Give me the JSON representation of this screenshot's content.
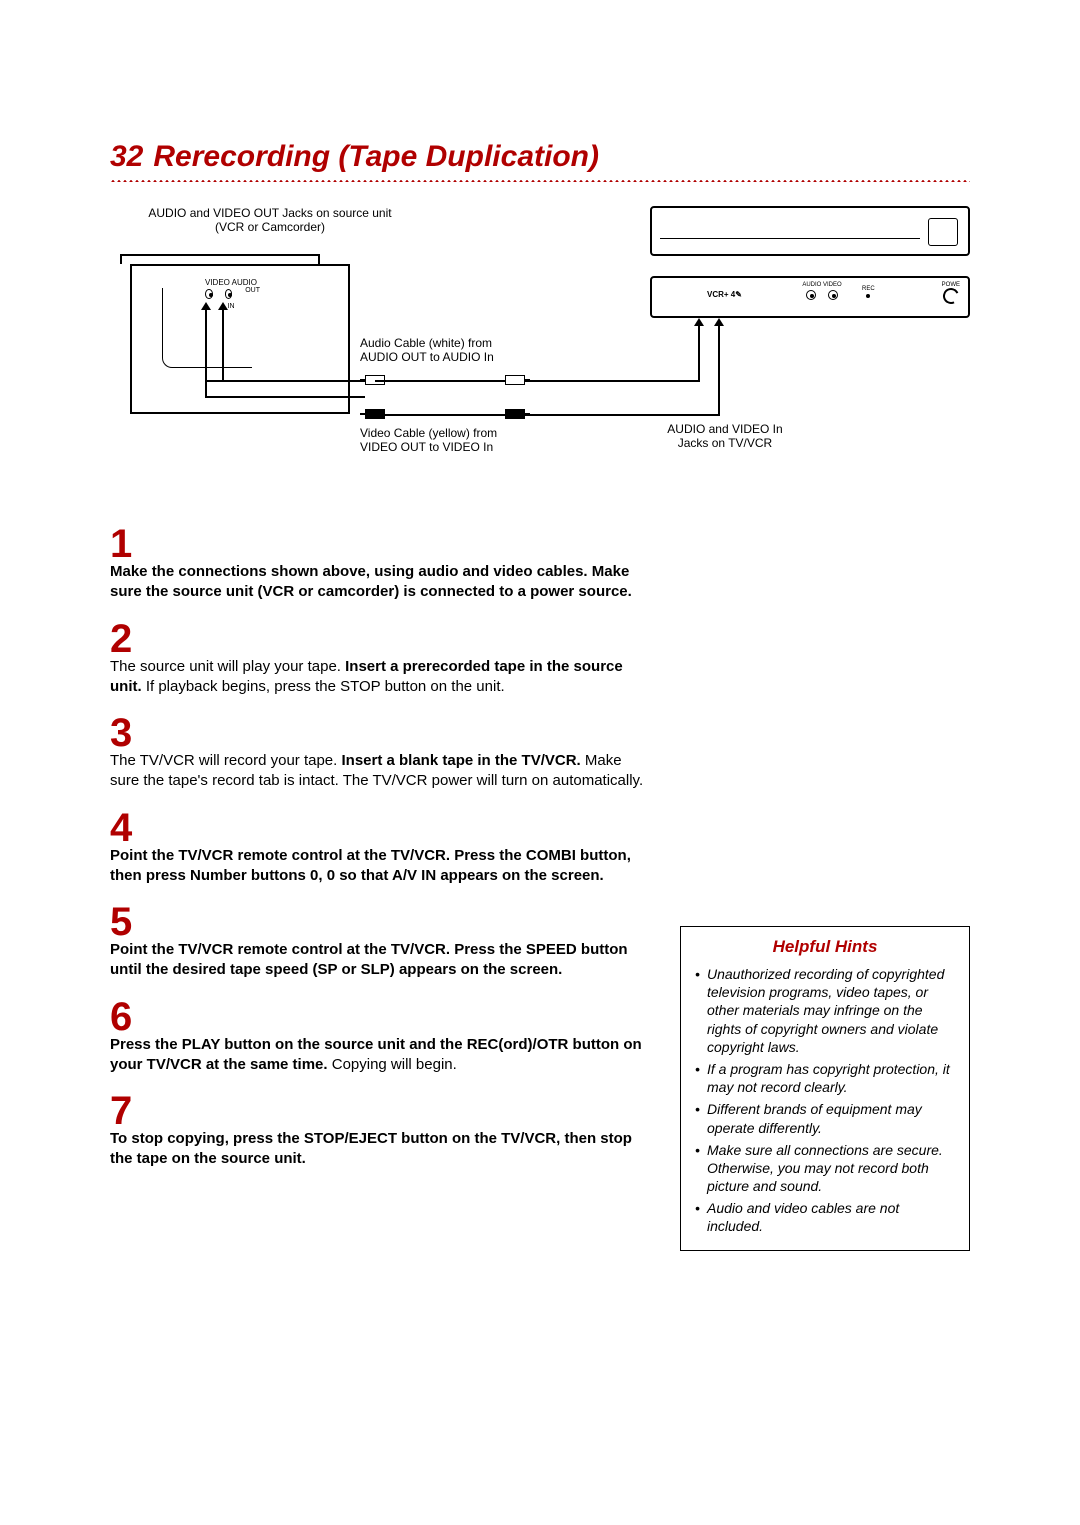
{
  "page": {
    "number": "32",
    "title": "Rerecording (Tape Duplication)"
  },
  "colors": {
    "accent": "#b00000",
    "text": "#000000",
    "background": "#ffffff"
  },
  "typography": {
    "heading_fontsize": 30,
    "body_fontsize": 15,
    "caption_fontsize": 12,
    "step_number_fontsize": 40,
    "hints_title_fontsize": 17,
    "hints_body_fontsize": 14
  },
  "diagram": {
    "source_caption_line1": "AUDIO and VIDEO OUT Jacks on source unit",
    "source_caption_line2": "(VCR or Camcorder)",
    "source_jacks_header": "VIDEO  AUDIO",
    "source_jacks_out": "OUT",
    "source_jacks_in": "IN",
    "cable_audio_line1": "Audio Cable (white) from",
    "cable_audio_line2": "AUDIO OUT to AUDIO In",
    "cable_video_line1": "Video Cable (yellow) from",
    "cable_video_line2": "VIDEO OUT to VIDEO In",
    "vcr_rear_jacks_header": "AUDIO  VIDEO",
    "vcr_rec_label": "REC",
    "vcr_power_label": "POWE",
    "vcr_badge": "VCR+  4✎",
    "vcr_caption_line1": "AUDIO and VIDEO In",
    "vcr_caption_line2": "Jacks on TV/VCR"
  },
  "steps": [
    {
      "num": "1",
      "segments": [
        {
          "text": "Make the connections shown above, using audio and video cables. Make sure the source unit (VCR or camcorder) is connected to a power source.",
          "bold": true
        }
      ]
    },
    {
      "num": "2",
      "segments": [
        {
          "text": "The source unit will play your tape. ",
          "bold": false
        },
        {
          "text": "Insert a prerecorded tape in the source unit.",
          "bold": true
        },
        {
          "text": " If playback begins, press the STOP button on the unit.",
          "bold": false
        }
      ]
    },
    {
      "num": "3",
      "segments": [
        {
          "text": "The TV/VCR will record your tape. ",
          "bold": false
        },
        {
          "text": "Insert a blank tape in the TV/VCR.",
          "bold": true
        },
        {
          "text": " Make sure the tape's record tab is intact. The TV/VCR power will turn on automatically.",
          "bold": false
        }
      ]
    },
    {
      "num": "4",
      "segments": [
        {
          "text": "Point the TV/VCR remote control at the TV/VCR. Press the COMBI button, then press Number buttons 0, 0 so that  A/V IN  appears on the screen.",
          "bold": true
        }
      ]
    },
    {
      "num": "5",
      "segments": [
        {
          "text": "Point the TV/VCR remote control at the TV/VCR. Press the SPEED button until the desired tape speed (SP or SLP) appears on the screen.",
          "bold": true
        }
      ]
    },
    {
      "num": "6",
      "segments": [
        {
          "text": "Press the PLAY button on the source unit and the REC(ord)/OTR button on your TV/VCR at the same time.",
          "bold": true
        },
        {
          "text": " Copying will begin.",
          "bold": false
        }
      ]
    },
    {
      "num": "7",
      "segments": [
        {
          "text": "To stop copying, press the STOP/EJECT button on the TV/VCR, then stop the tape on the source unit.",
          "bold": true
        }
      ]
    }
  ],
  "hints": {
    "title": "Helpful Hints",
    "items": [
      "Unauthorized recording of copyrighted television programs, video tapes, or other materials may infringe on the rights of copyright owners and violate copyright laws.",
      "If a program has copyright protection, it may not record clearly.",
      "Different brands of equipment may operate differently.",
      "Make sure all connections are secure. Otherwise, you may not record both picture and sound.",
      "Audio and video cables are not included."
    ]
  }
}
